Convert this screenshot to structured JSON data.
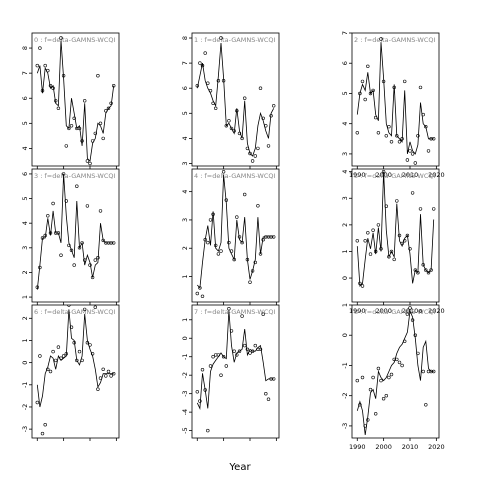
{
  "figure": {
    "xlabel": "Year"
  },
  "colors": {
    "line": "#000000",
    "frame": "#000000",
    "title": "#888888",
    "background": "#ffffff"
  },
  "chart_data": [
    {
      "type": "line",
      "title": "0 : f=delta-GAMNS-WCQI",
      "xlim": [
        1988,
        2021
      ],
      "ylim": [
        3.3,
        8.6
      ],
      "yticks": [
        4,
        5,
        6,
        7,
        8
      ],
      "xticks": [
        1990,
        2000,
        2010,
        2020
      ],
      "xtick_labels": false,
      "x": [
        1990,
        1991,
        1992,
        1993,
        1994,
        1995,
        1996,
        1997,
        1998,
        1999,
        2000,
        2001,
        2002,
        2003,
        2004,
        2005,
        2006,
        2007,
        2008,
        2009,
        2010,
        2011,
        2012,
        2013,
        2014,
        2015,
        2016,
        2017,
        2018,
        2019
      ],
      "series": [
        {
          "role": "line",
          "values": [
            7.0,
            7.3,
            6.2,
            7.2,
            7.0,
            6.4,
            6.5,
            5.8,
            5.7,
            8.3,
            6.8,
            4.9,
            4.8,
            6.0,
            5.4,
            4.8,
            4.9,
            4.1,
            5.8,
            3.6,
            3.5,
            4.2,
            4.4,
            5.0,
            4.9,
            4.6,
            5.4,
            5.6,
            5.7,
            6.5
          ]
        },
        {
          "role": "points",
          "values": [
            7.3,
            8.0,
            6.3,
            7.3,
            7.1,
            6.5,
            6.4,
            5.9,
            5.6,
            8.4,
            6.9,
            4.1,
            4.8,
            4.9,
            5.2,
            4.8,
            4.8,
            4.3,
            5.9,
            3.5,
            3.4,
            4.3,
            4.6,
            6.9,
            5.0,
            4.4,
            5.5,
            5.6,
            5.8,
            6.5
          ]
        }
      ]
    },
    {
      "type": "line",
      "title": "3 : f=delta-GAMNS-WCQI",
      "xlim": [
        1988,
        2021
      ],
      "ylim": [
        0.8,
        6.2
      ],
      "yticks": [
        1,
        2,
        3,
        4,
        5,
        6
      ],
      "xticks": [
        1990,
        2000,
        2010,
        2020
      ],
      "xtick_labels": false,
      "x": [
        1990,
        1991,
        1992,
        1993,
        1994,
        1995,
        1996,
        1997,
        1998,
        1999,
        2000,
        2001,
        2002,
        2003,
        2004,
        2005,
        2006,
        2007,
        2008,
        2009,
        2010,
        2011,
        2012,
        2013,
        2014,
        2015,
        2016,
        2017,
        2018,
        2019
      ],
      "series": [
        {
          "role": "line",
          "values": [
            1.3,
            2.3,
            3.4,
            3.4,
            4.2,
            3.5,
            4.5,
            3.6,
            3.6,
            3.2,
            6.0,
            4.3,
            3.2,
            2.9,
            2.6,
            4.9,
            3.0,
            3.2,
            2.3,
            2.7,
            2.4,
            1.8,
            2.3,
            2.4,
            4.0,
            3.3,
            3.2,
            3.2,
            3.2,
            3.2
          ]
        },
        {
          "role": "points",
          "values": [
            1.4,
            2.2,
            3.4,
            3.5,
            4.3,
            3.6,
            4.8,
            3.6,
            3.6,
            2.7,
            6.0,
            4.9,
            3.1,
            2.9,
            2.3,
            5.5,
            3.0,
            3.2,
            2.5,
            4.7,
            2.3,
            1.8,
            2.5,
            2.6,
            4.5,
            3.3,
            3.2,
            3.2,
            3.2,
            3.2
          ]
        }
      ]
    },
    {
      "type": "line",
      "title": "6 : f=delta-GAMNS-WCQI",
      "xlim": [
        1988,
        2021
      ],
      "ylim": [
        -3.4,
        2.6
      ],
      "yticks": [
        -3,
        -2,
        -1,
        0,
        1,
        2
      ],
      "xticks": [
        1990,
        2000,
        2010,
        2020
      ],
      "xtick_labels": false,
      "x": [
        1990,
        1991,
        1992,
        1993,
        1994,
        1995,
        1996,
        1997,
        1998,
        1999,
        2000,
        2001,
        2002,
        2003,
        2004,
        2005,
        2006,
        2007,
        2008,
        2009,
        2010,
        2011,
        2012,
        2013,
        2014,
        2015,
        2016,
        2017,
        2018,
        2019
      ],
      "series": [
        {
          "role": "line",
          "values": [
            -1.0,
            -2.0,
            -1.5,
            -0.5,
            -0.2,
            0.3,
            0.2,
            -0.3,
            0.3,
            0.1,
            0.2,
            0.3,
            2.4,
            1.1,
            1.0,
            0.1,
            -0.1,
            0.3,
            2.2,
            1.0,
            0.6,
            0.3,
            -0.3,
            -1.1,
            -0.9,
            -0.5,
            -0.5,
            -0.5,
            -0.5,
            -0.5
          ]
        },
        {
          "role": "points",
          "values": [
            -1.8,
            0.3,
            -3.2,
            -2.8,
            -0.3,
            -0.4,
            0.5,
            0.1,
            0.7,
            0.2,
            0.3,
            0.4,
            2.6,
            1.6,
            0.9,
            0.1,
            0.5,
            0.1,
            2.4,
            0.9,
            0.8,
            0.4,
            2.5,
            -1.2,
            -0.7,
            -0.3,
            -0.6,
            -0.4,
            -0.6,
            -0.5
          ]
        }
      ]
    },
    {
      "type": "line",
      "title": "1 : f=delta-GAMNS-WCQI",
      "xlim": [
        1988,
        2021
      ],
      "ylim": [
        2.9,
        8.2
      ],
      "yticks": [
        3,
        4,
        5,
        6,
        7,
        8
      ],
      "xticks": [
        1990,
        2000,
        2010,
        2020
      ],
      "xtick_labels": false,
      "x": [
        1990,
        1991,
        1992,
        1993,
        1994,
        1995,
        1996,
        1997,
        1998,
        1999,
        2000,
        2001,
        2002,
        2003,
        2004,
        2005,
        2006,
        2007,
        2008,
        2009,
        2010,
        2011,
        2012,
        2013,
        2014,
        2015,
        2016,
        2017,
        2018,
        2019
      ],
      "series": [
        {
          "role": "line",
          "values": [
            6.0,
            6.5,
            7.0,
            6.3,
            6.0,
            5.8,
            5.5,
            5.3,
            6.5,
            7.8,
            6.4,
            4.5,
            4.6,
            4.4,
            4.2,
            5.2,
            4.3,
            4.0,
            5.5,
            3.8,
            3.4,
            3.3,
            3.6,
            4.5,
            5.0,
            4.7,
            4.3,
            4.0,
            5.0,
            5.2
          ]
        },
        {
          "role": "points",
          "values": [
            6.1,
            7.0,
            6.9,
            7.4,
            6.2,
            5.9,
            5.4,
            5.2,
            6.3,
            8.0,
            6.3,
            4.5,
            4.7,
            4.4,
            4.3,
            5.1,
            4.2,
            4.0,
            5.6,
            3.6,
            3.4,
            3.1,
            3.3,
            3.6,
            6.0,
            4.8,
            4.5,
            3.7,
            4.9,
            5.3
          ]
        }
      ]
    },
    {
      "type": "line",
      "title": "4 : f=delta-GAMNS-WCQI",
      "xlim": [
        1988,
        2021
      ],
      "ylim": [
        0.1,
        4.8
      ],
      "yticks": [
        1,
        2,
        3,
        4
      ],
      "xticks": [
        1990,
        2000,
        2010,
        2020
      ],
      "xtick_labels": false,
      "x": [
        1990,
        1991,
        1992,
        1993,
        1994,
        1995,
        1996,
        1997,
        1998,
        1999,
        2000,
        2001,
        2002,
        2003,
        2004,
        2005,
        2006,
        2007,
        2008,
        2009,
        2010,
        2011,
        2012,
        2013,
        2014,
        2015,
        2016,
        2017,
        2018,
        2019
      ],
      "series": [
        {
          "role": "line",
          "values": [
            0.7,
            0.6,
            1.5,
            2.3,
            2.8,
            2.1,
            3.3,
            2.0,
            1.9,
            2.2,
            4.6,
            3.6,
            2.0,
            1.8,
            1.6,
            3.0,
            2.3,
            2.2,
            3.1,
            1.6,
            0.9,
            1.2,
            1.6,
            3.1,
            1.8,
            2.4,
            2.4,
            2.4,
            2.4,
            2.4
          ]
        },
        {
          "role": "points",
          "values": [
            0.4,
            0.6,
            0.3,
            2.3,
            2.2,
            3.0,
            3.2,
            2.1,
            1.8,
            1.9,
            4.7,
            3.7,
            2.2,
            1.9,
            1.6,
            3.1,
            2.4,
            2.2,
            3.9,
            1.6,
            0.8,
            1.2,
            1.5,
            3.5,
            1.8,
            2.3,
            2.4,
            2.4,
            2.4,
            2.4
          ]
        }
      ]
    },
    {
      "type": "line",
      "title": "7 : f=delta-GAMNS-WCQI",
      "xlim": [
        1988,
        2021
      ],
      "ylim": [
        -5.4,
        1.8
      ],
      "yticks": [
        -5,
        -4,
        -3,
        -2,
        -1,
        0,
        1
      ],
      "xticks": [
        1990,
        2000,
        2010,
        2020
      ],
      "xtick_labels": false,
      "x": [
        1990,
        1991,
        1992,
        1993,
        1994,
        1995,
        1996,
        1997,
        1998,
        1999,
        2000,
        2001,
        2002,
        2003,
        2004,
        2005,
        2006,
        2007,
        2008,
        2009,
        2010,
        2011,
        2012,
        2013,
        2014,
        2015,
        2016,
        2017,
        2018,
        2019
      ],
      "series": [
        {
          "role": "line",
          "values": [
            -3.5,
            -3.8,
            -1.9,
            -2.8,
            -3.8,
            -1.8,
            -1.4,
            -1.2,
            -1.0,
            -0.8,
            -1.0,
            -1.1,
            1.5,
            -0.4,
            -1.3,
            -0.8,
            -0.7,
            -0.6,
            0.5,
            -0.9,
            -0.6,
            -0.7,
            -0.7,
            -0.5,
            -0.4,
            -1.3,
            -2.3,
            -2.2,
            -2.2,
            -2.2
          ]
        },
        {
          "role": "points",
          "values": [
            -2.9,
            -3.4,
            -1.7,
            -2.8,
            -5.0,
            -1.5,
            -1.0,
            -0.9,
            -0.9,
            -2.0,
            -1.0,
            -1.5,
            1.6,
            0.4,
            -0.7,
            -0.9,
            -0.7,
            1.2,
            -0.4,
            -0.6,
            -0.8,
            -0.7,
            -0.4,
            -0.6,
            -0.6,
            1.3,
            -3.0,
            -3.3,
            -2.2,
            -2.2
          ]
        }
      ]
    },
    {
      "type": "line",
      "title": "2 : f=delta-GAMNS-WCQI",
      "xlim": [
        1988,
        2021
      ],
      "ylim": [
        2.6,
        7.0
      ],
      "yticks": [
        3,
        4,
        5,
        6,
        7
      ],
      "xticks": [
        1990,
        2000,
        2010,
        2020
      ],
      "xtick_labels": [
        1990,
        2000,
        2010,
        2020
      ],
      "x": [
        1990,
        1991,
        1992,
        1993,
        1994,
        1995,
        1996,
        1997,
        1998,
        1999,
        2000,
        2001,
        2002,
        2003,
        2004,
        2005,
        2006,
        2007,
        2008,
        2009,
        2010,
        2011,
        2012,
        2013,
        2014,
        2015,
        2016,
        2017,
        2018,
        2019
      ],
      "series": [
        {
          "role": "line",
          "values": [
            4.3,
            5.0,
            5.3,
            5.1,
            5.7,
            5.0,
            5.1,
            4.3,
            4.1,
            6.7,
            5.5,
            4.0,
            3.7,
            3.6,
            5.3,
            3.6,
            3.5,
            3.4,
            5.1,
            3.0,
            3.4,
            3.1,
            3.0,
            3.3,
            4.7,
            4.0,
            3.9,
            3.5,
            3.5,
            3.5
          ]
        },
        {
          "role": "points",
          "values": [
            3.7,
            5.0,
            5.4,
            4.8,
            5.9,
            5.0,
            5.1,
            4.2,
            3.7,
            6.8,
            5.4,
            3.6,
            3.9,
            3.4,
            5.2,
            3.6,
            3.4,
            3.5,
            5.4,
            2.8,
            3.1,
            3.0,
            2.7,
            3.6,
            5.2,
            4.3,
            3.9,
            3.1,
            3.5,
            3.5
          ]
        }
      ]
    },
    {
      "type": "line",
      "title": "5 : f=delta-GAMNS-WCQI",
      "xlim": [
        1988,
        2021
      ],
      "ylim": [
        -0.9,
        4.1
      ],
      "yticks": [
        0,
        1,
        2,
        3,
        4
      ],
      "xticks": [
        1990,
        2000,
        2010,
        2020
      ],
      "xtick_labels": [
        1990,
        2000,
        2010,
        2020
      ],
      "x": [
        1990,
        1991,
        1992,
        1993,
        1994,
        1995,
        1996,
        1997,
        1998,
        1999,
        2000,
        2001,
        2002,
        2003,
        2004,
        2005,
        2006,
        2007,
        2008,
        2009,
        2010,
        2011,
        2012,
        2013,
        2014,
        2015,
        2016,
        2017,
        2018,
        2019
      ],
      "series": [
        {
          "role": "line",
          "values": [
            1.2,
            -0.3,
            -0.2,
            0.7,
            1.5,
            1.1,
            1.7,
            0.9,
            1.9,
            1.0,
            4.0,
            1.8,
            0.8,
            1.0,
            0.8,
            2.8,
            1.4,
            1.2,
            1.5,
            1.6,
            0.9,
            -0.2,
            0.3,
            0.2,
            2.4,
            0.5,
            0.3,
            0.2,
            0.3,
            2.2
          ]
        },
        {
          "role": "points",
          "values": [
            1.4,
            -0.2,
            -0.3,
            1.4,
            1.7,
            0.9,
            1.8,
            1.0,
            2.0,
            1.1,
            4.0,
            2.7,
            0.8,
            1.0,
            0.7,
            2.9,
            1.6,
            1.3,
            1.4,
            1.6,
            1.1,
            3.2,
            0.3,
            0.2,
            2.6,
            0.5,
            0.3,
            0.2,
            0.3,
            2.6
          ]
        }
      ]
    },
    {
      "type": "line",
      "title": "8 : f=delta-GAMNS-WCQI",
      "xlim": [
        1988,
        2021
      ],
      "ylim": [
        -3.4,
        1.0
      ],
      "yticks": [
        -3,
        -2,
        -1,
        0,
        1
      ],
      "xticks": [
        1990,
        2000,
        2010,
        2020
      ],
      "xtick_labels": [
        1990,
        2000,
        2010,
        2020
      ],
      "x": [
        1990,
        1991,
        1992,
        1993,
        1994,
        1995,
        1996,
        1997,
        1998,
        1999,
        2000,
        2001,
        2002,
        2003,
        2004,
        2005,
        2006,
        2007,
        2008,
        2009,
        2010,
        2011,
        2012,
        2013,
        2014,
        2015,
        2016,
        2017,
        2018,
        2019
      ],
      "series": [
        {
          "role": "line",
          "values": [
            -2.5,
            -2.2,
            -2.5,
            -3.3,
            -2.7,
            -1.9,
            -1.8,
            -2.1,
            -1.2,
            -1.4,
            -1.5,
            -1.4,
            -1.2,
            -1.0,
            -0.9,
            -0.6,
            -0.4,
            -0.3,
            -0.1,
            0.1,
            0.8,
            0.6,
            -0.1,
            -1.0,
            -1.5,
            -0.4,
            -0.2,
            -1.1,
            -1.2,
            -1.2
          ]
        },
        {
          "role": "points",
          "values": [
            -1.5,
            -2.3,
            -1.4,
            -3.0,
            -2.8,
            -1.8,
            -1.4,
            -2.6,
            -1.1,
            -1.5,
            -2.1,
            -2.0,
            -1.4,
            -1.3,
            -0.8,
            -0.8,
            -0.9,
            -1.0,
            -0.2,
            0.7,
            0.9,
            0.5,
            0.0,
            -0.6,
            0.8,
            -1.2,
            -2.3,
            -1.2,
            -1.2,
            -1.2
          ]
        }
      ]
    }
  ]
}
